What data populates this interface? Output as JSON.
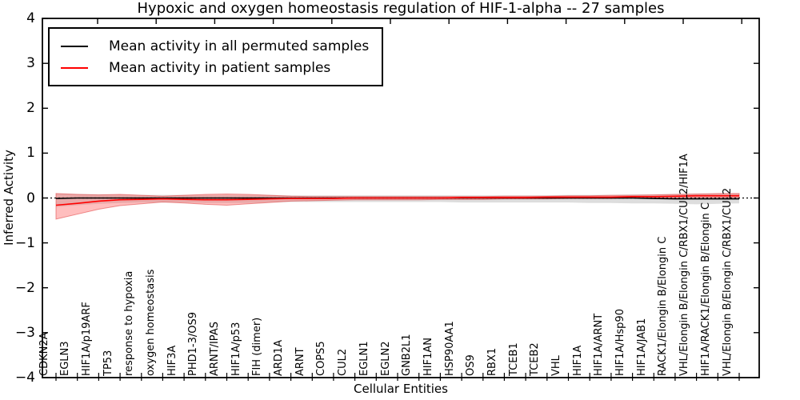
{
  "chart_data": {
    "type": "line",
    "title": "Hypoxic and oxygen homeostasis regulation of HIF-1-alpha -- 27 samples",
    "xlabel": "Cellular Entities",
    "ylabel": "Inferred Activity",
    "ylim": [
      -4,
      4
    ],
    "grid": false,
    "legend_position": "upper left",
    "background_color": "#ffffff",
    "zero_line": {
      "value": 0,
      "style": "dotted",
      "color": "#000000"
    },
    "yticks": [
      {
        "label": "4",
        "value": 4
      },
      {
        "label": "3",
        "value": 3
      },
      {
        "label": "2",
        "value": 2
      },
      {
        "label": "1",
        "value": 1
      },
      {
        "label": "0",
        "value": 0
      },
      {
        "label": "−1",
        "value": -1
      },
      {
        "label": "−2",
        "value": -2
      },
      {
        "label": "−3",
        "value": -3
      },
      {
        "label": "−4",
        "value": -4
      }
    ],
    "categories": [
      "CDKN2A",
      "EGLN3",
      "HIF1A/p19ARF",
      "TP53",
      "response to hypoxia",
      "oxygen homeostasis",
      "HIF3A",
      "PHD1-3/OS9",
      "ARNT/IPAS",
      "HIF1A/p53",
      "FIH (dimer)",
      "ARD1A",
      "ARNT",
      "COPS5",
      "CUL2",
      "EGLN1",
      "EGLN2",
      "GNB2L1",
      "HIF1AN",
      "HSP90AA1",
      "OS9",
      "RBX1",
      "TCEB1",
      "TCEB2",
      "VHL",
      "HIF1A",
      "HIF1A/ARNT",
      "HIF1A/Hsp90",
      "HIF1A/JAB1",
      "RACK1/Elongin B/Elongin C",
      "VHL/Elongin B/Elongin C/RBX1/CUL2/HIF1A",
      "HIF1A/RACK1/Elongin B/Elongin C",
      "VHL/Elongin B/Elongin C/RBX1/CUL2"
    ],
    "series": [
      {
        "name": "Mean activity in all permuted samples",
        "color": "#000000",
        "band_color": "#aaaaaa",
        "values": [
          -0.01,
          0,
          0,
          0,
          0,
          0,
          0,
          0,
          0,
          0,
          0,
          0,
          0,
          0,
          0,
          0,
          0,
          0,
          0,
          0,
          0,
          0,
          0,
          0,
          0,
          0,
          0,
          0,
          -0.01,
          -0.02,
          -0.02,
          -0.02,
          -0.02
        ],
        "band_upper": [
          0.1,
          0.09,
          0.08,
          0.08,
          0.07,
          0.07,
          0.07,
          0.07,
          0.07,
          0.07,
          0.07,
          0.06,
          0.06,
          0.06,
          0.06,
          0.06,
          0.06,
          0.06,
          0.06,
          0.06,
          0.06,
          0.06,
          0.06,
          0.06,
          0.07,
          0.07,
          0.07,
          0.08,
          0.08,
          0.09,
          0.1,
          0.1,
          0.1
        ],
        "band_lower": [
          -0.2,
          -0.16,
          -0.13,
          -0.11,
          -0.1,
          -0.1,
          -0.1,
          -0.11,
          -0.11,
          -0.11,
          -0.1,
          -0.09,
          -0.09,
          -0.09,
          -0.09,
          -0.09,
          -0.09,
          -0.09,
          -0.09,
          -0.1,
          -0.1,
          -0.1,
          -0.1,
          -0.1,
          -0.1,
          -0.11,
          -0.11,
          -0.12,
          -0.12,
          -0.13,
          -0.14,
          -0.13,
          -0.12
        ]
      },
      {
        "name": "Mean activity in patient samples",
        "color": "#ff0000",
        "band_color": "#ff5555",
        "values": [
          -0.16,
          -0.12,
          -0.07,
          -0.04,
          -0.03,
          -0.02,
          -0.03,
          -0.04,
          -0.04,
          -0.03,
          -0.02,
          -0.01,
          -0.01,
          -0.01,
          0,
          0,
          0,
          0,
          0,
          0.01,
          0.01,
          0.01,
          0.01,
          0.02,
          0.02,
          0.02,
          0.02,
          0.03,
          0.03,
          0.04,
          0.05,
          0.05,
          0.05
        ],
        "band_upper": [
          0.1,
          0.08,
          0.07,
          0.08,
          0.06,
          0.04,
          0.06,
          0.08,
          0.09,
          0.08,
          0.06,
          0.04,
          0.03,
          0.03,
          0.03,
          0.03,
          0.03,
          0.03,
          0.03,
          0.03,
          0.03,
          0.04,
          0.04,
          0.04,
          0.05,
          0.05,
          0.06,
          0.06,
          0.07,
          0.08,
          0.09,
          0.1,
          0.1
        ],
        "band_lower": [
          -0.47,
          -0.36,
          -0.25,
          -0.17,
          -0.13,
          -0.09,
          -0.11,
          -0.14,
          -0.16,
          -0.13,
          -0.1,
          -0.07,
          -0.06,
          -0.05,
          -0.04,
          -0.04,
          -0.04,
          -0.04,
          -0.03,
          -0.03,
          -0.03,
          -0.02,
          -0.02,
          -0.02,
          -0.01,
          -0.01,
          -0.01,
          0,
          0,
          0,
          0.01,
          0.01,
          0.01
        ]
      }
    ]
  }
}
